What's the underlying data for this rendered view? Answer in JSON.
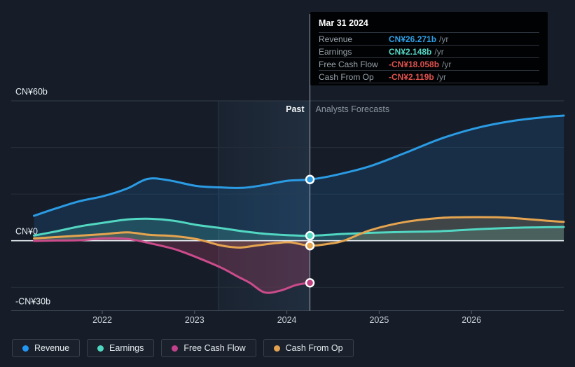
{
  "tooltip": {
    "date": "Mar 31 2024",
    "rows": [
      {
        "name": "revenue",
        "label": "Revenue",
        "value": "CN¥26.271b",
        "suffix": "/yr",
        "color": "#2d9fe6"
      },
      {
        "name": "earnings",
        "label": "Earnings",
        "value": "CN¥2.148b",
        "suffix": "/yr",
        "color": "#57d6c4"
      },
      {
        "name": "free-cash-flow",
        "label": "Free Cash Flow",
        "value": "-CN¥18.058b",
        "suffix": "/yr",
        "color": "#e0524e"
      },
      {
        "name": "cash-from-op",
        "label": "Cash From Op",
        "value": "-CN¥2.119b",
        "suffix": "/yr",
        "color": "#e0524e"
      }
    ]
  },
  "legend": [
    {
      "name": "revenue",
      "label": "Revenue",
      "color": "#2196f3"
    },
    {
      "name": "earnings",
      "label": "Earnings",
      "color": "#4fd6c0"
    },
    {
      "name": "free-cash-flow",
      "label": "Free Cash Flow",
      "color": "#c2418c"
    },
    {
      "name": "cash-from-op",
      "label": "Cash From Op",
      "color": "#e2a14f"
    }
  ],
  "chart_data": {
    "type": "line",
    "title": "",
    "currency": "CN¥",
    "unit": "b",
    "grid": true,
    "legend_position": "bottom",
    "x_axis": {
      "range": [
        2021.15,
        2027.0
      ],
      "ticks": [
        2022,
        2023,
        2024,
        2025,
        2026
      ],
      "labels": [
        "2022",
        "2023",
        "2024",
        "2025",
        "2026"
      ]
    },
    "y_axis": {
      "range": [
        -30,
        60
      ],
      "gridlines": [
        60,
        40,
        20,
        -20
      ],
      "zero_line": 0,
      "axis_line": -30,
      "labels": [
        {
          "text": "CN¥60b",
          "value": 60
        },
        {
          "text": "CN¥0",
          "value": 0
        },
        {
          "text": "-CN¥30b",
          "value": -30
        }
      ]
    },
    "divider": {
      "x": 2024.25,
      "band_start": 2023.26,
      "past_label": "Past",
      "forecast_label": "Analysts Forecasts"
    },
    "marker_x": 2024.25,
    "series": [
      {
        "name": "revenue",
        "label": "Revenue",
        "color": "#2b9be4",
        "fill": "rgba(33,150,243,0.15)",
        "marker_fill": "#2b9be4",
        "points": [
          [
            2021.26,
            10.7
          ],
          [
            2021.51,
            14.0
          ],
          [
            2021.76,
            17.0
          ],
          [
            2022.01,
            19.1
          ],
          [
            2022.27,
            22.4
          ],
          [
            2022.49,
            26.5
          ],
          [
            2022.71,
            26.0
          ],
          [
            2023.02,
            23.5
          ],
          [
            2023.27,
            22.9
          ],
          [
            2023.53,
            22.7
          ],
          [
            2023.78,
            24.1
          ],
          [
            2024.0,
            25.7
          ],
          [
            2024.25,
            26.271
          ],
          [
            2024.53,
            28.2
          ],
          [
            2024.91,
            32.1
          ],
          [
            2025.29,
            37.8
          ],
          [
            2025.67,
            43.8
          ],
          [
            2026.05,
            48.3
          ],
          [
            2026.43,
            51.3
          ],
          [
            2026.81,
            53.1
          ],
          [
            2027.0,
            53.7
          ]
        ]
      },
      {
        "name": "earnings",
        "label": "Earnings",
        "color": "#52d7c2",
        "fill": "rgba(82,215,194,0.20)",
        "marker_fill": "#52d7c2",
        "points": [
          [
            2021.26,
            2.2
          ],
          [
            2021.51,
            4.1
          ],
          [
            2021.76,
            6.2
          ],
          [
            2022.01,
            7.7
          ],
          [
            2022.27,
            9.1
          ],
          [
            2022.52,
            9.4
          ],
          [
            2022.77,
            8.6
          ],
          [
            2023.02,
            6.8
          ],
          [
            2023.27,
            5.5
          ],
          [
            2023.53,
            4.0
          ],
          [
            2023.78,
            2.9
          ],
          [
            2024.0,
            2.4
          ],
          [
            2024.25,
            2.148
          ],
          [
            2024.61,
            2.9
          ],
          [
            2024.91,
            3.4
          ],
          [
            2025.29,
            3.8
          ],
          [
            2025.67,
            4.1
          ],
          [
            2026.05,
            4.9
          ],
          [
            2026.43,
            5.5
          ],
          [
            2026.81,
            5.8
          ],
          [
            2027.0,
            5.9
          ]
        ]
      },
      {
        "name": "cash-from-op",
        "label": "Cash From Op",
        "color": "#e5a44f",
        "fill": "rgba(229,164,79,0.20)",
        "marker_fill": "#e5a44f",
        "points": [
          [
            2021.26,
            1.0
          ],
          [
            2021.51,
            1.6
          ],
          [
            2021.76,
            2.2
          ],
          [
            2022.01,
            2.8
          ],
          [
            2022.27,
            3.6
          ],
          [
            2022.52,
            2.5
          ],
          [
            2022.77,
            2.0
          ],
          [
            2023.02,
            0.7
          ],
          [
            2023.27,
            -1.9
          ],
          [
            2023.4,
            -2.7
          ],
          [
            2023.51,
            -2.9
          ],
          [
            2023.7,
            -1.9
          ],
          [
            2023.89,
            -1.0
          ],
          [
            2024.04,
            -0.7
          ],
          [
            2024.25,
            -2.119
          ],
          [
            2024.46,
            -1.3
          ],
          [
            2024.61,
            -0.1
          ],
          [
            2024.91,
            4.6
          ],
          [
            2025.29,
            8.1
          ],
          [
            2025.67,
            9.8
          ],
          [
            2025.92,
            10.1
          ],
          [
            2026.2,
            10.1
          ],
          [
            2026.43,
            9.8
          ],
          [
            2026.81,
            8.6
          ],
          [
            2027.0,
            8.1
          ]
        ]
      },
      {
        "name": "free-cash-flow",
        "label": "Free Cash Flow",
        "color": "#cb4b8b",
        "fill": "rgba(203,75,120,0.25)",
        "marker_fill": "#bf3f7f",
        "points": [
          [
            2021.26,
            -0.1
          ],
          [
            2021.51,
            0.1
          ],
          [
            2021.76,
            0.2
          ],
          [
            2022.01,
            1.0
          ],
          [
            2022.27,
            0.8
          ],
          [
            2022.52,
            -1.1
          ],
          [
            2022.79,
            -3.7
          ],
          [
            2023.04,
            -7.4
          ],
          [
            2023.29,
            -11.6
          ],
          [
            2023.47,
            -15.4
          ],
          [
            2023.6,
            -18.1
          ],
          [
            2023.76,
            -22.2
          ],
          [
            2023.93,
            -21.4
          ],
          [
            2024.1,
            -19.0
          ],
          [
            2024.25,
            -18.058
          ]
        ]
      }
    ]
  }
}
